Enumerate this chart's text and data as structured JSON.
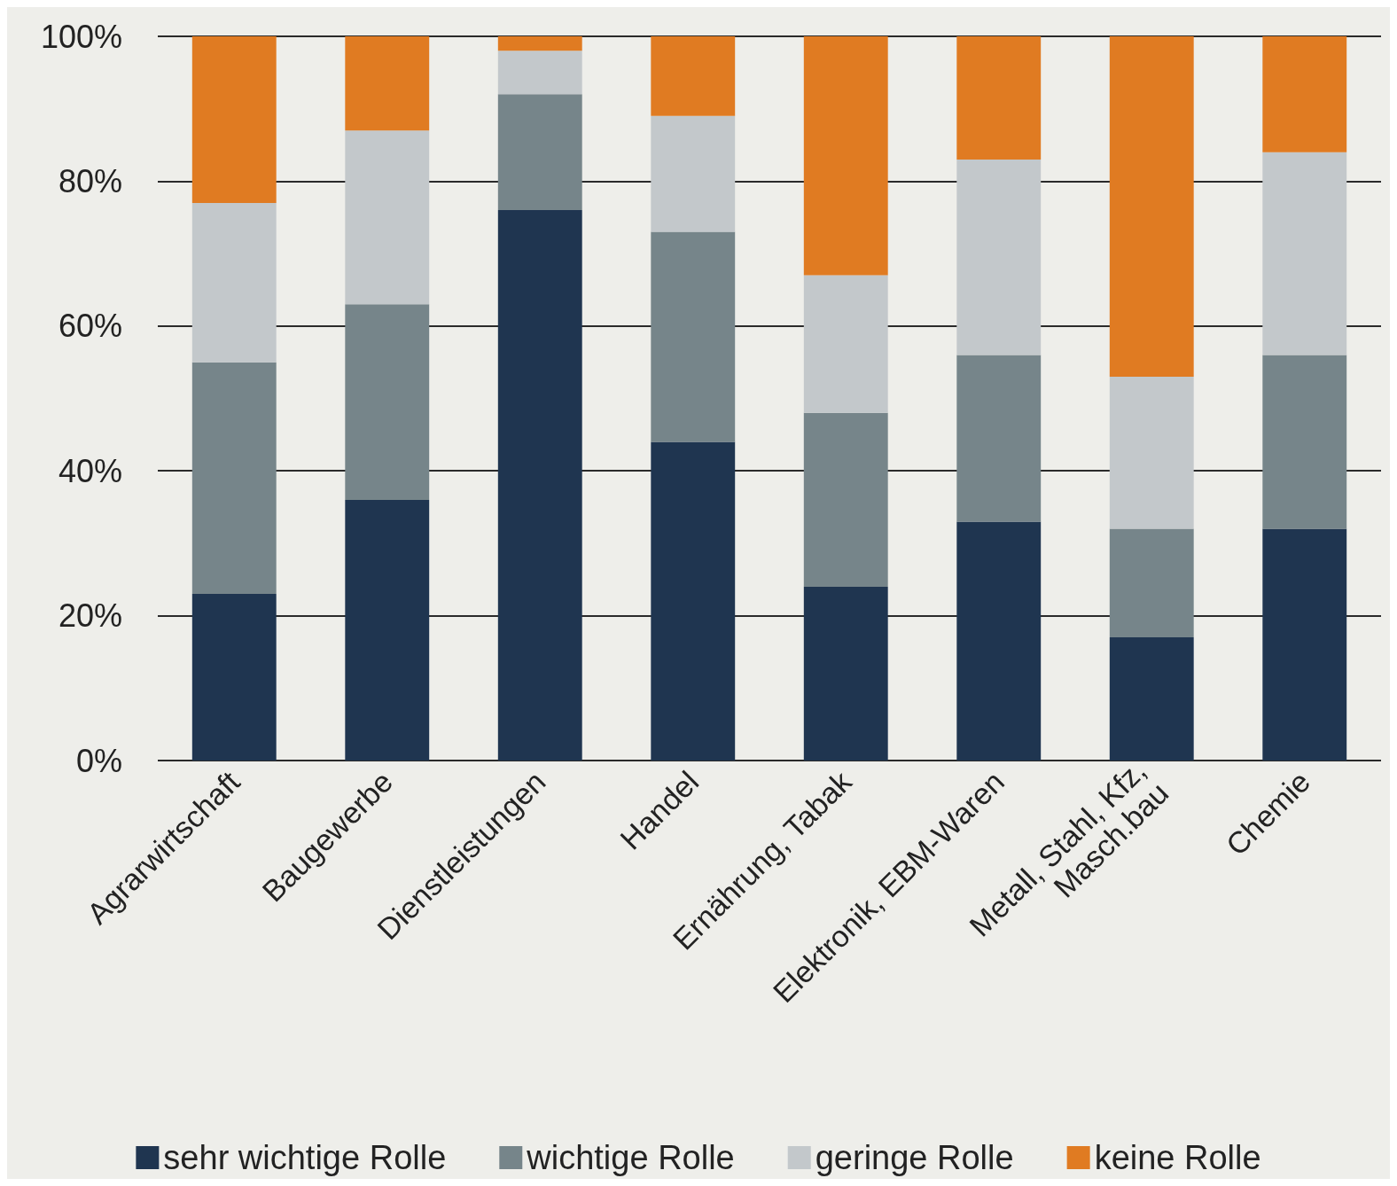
{
  "chart_data": {
    "type": "bar",
    "stacked": true,
    "categories": [
      "Agrarwirtschaft",
      "Baugewerbe",
      "Dienstleistungen",
      "Handel",
      "Ernährung, Tabak",
      "Elektronik, EBM-Waren",
      "Metall, Stahl, Kfz,\nMasch.bau",
      "Chemie"
    ],
    "series": [
      {
        "name": "sehr wichtige Rolle",
        "color": "#1f3550",
        "values": [
          23,
          36,
          76,
          44,
          24,
          33,
          17,
          32
        ]
      },
      {
        "name": "wichtige Rolle",
        "color": "#76858a",
        "values": [
          32,
          27,
          16,
          29,
          24,
          23,
          15,
          24
        ]
      },
      {
        "name": "geringe Rolle",
        "color": "#c3c8cb",
        "values": [
          22,
          24,
          6,
          16,
          19,
          27,
          21,
          28
        ]
      },
      {
        "name": "keine Rolle",
        "color": "#e07b22",
        "values": [
          23,
          13,
          2,
          11,
          33,
          17,
          47,
          16
        ]
      }
    ],
    "ylim": [
      0,
      100
    ],
    "yticks": [
      {
        "value": 0,
        "label": "0%"
      },
      {
        "value": 20,
        "label": "20%"
      },
      {
        "value": 40,
        "label": "40%"
      },
      {
        "value": 60,
        "label": "60%"
      },
      {
        "value": 80,
        "label": "80%"
      },
      {
        "value": 100,
        "label": "100%"
      }
    ],
    "grid": "y",
    "legend": "bottom"
  }
}
